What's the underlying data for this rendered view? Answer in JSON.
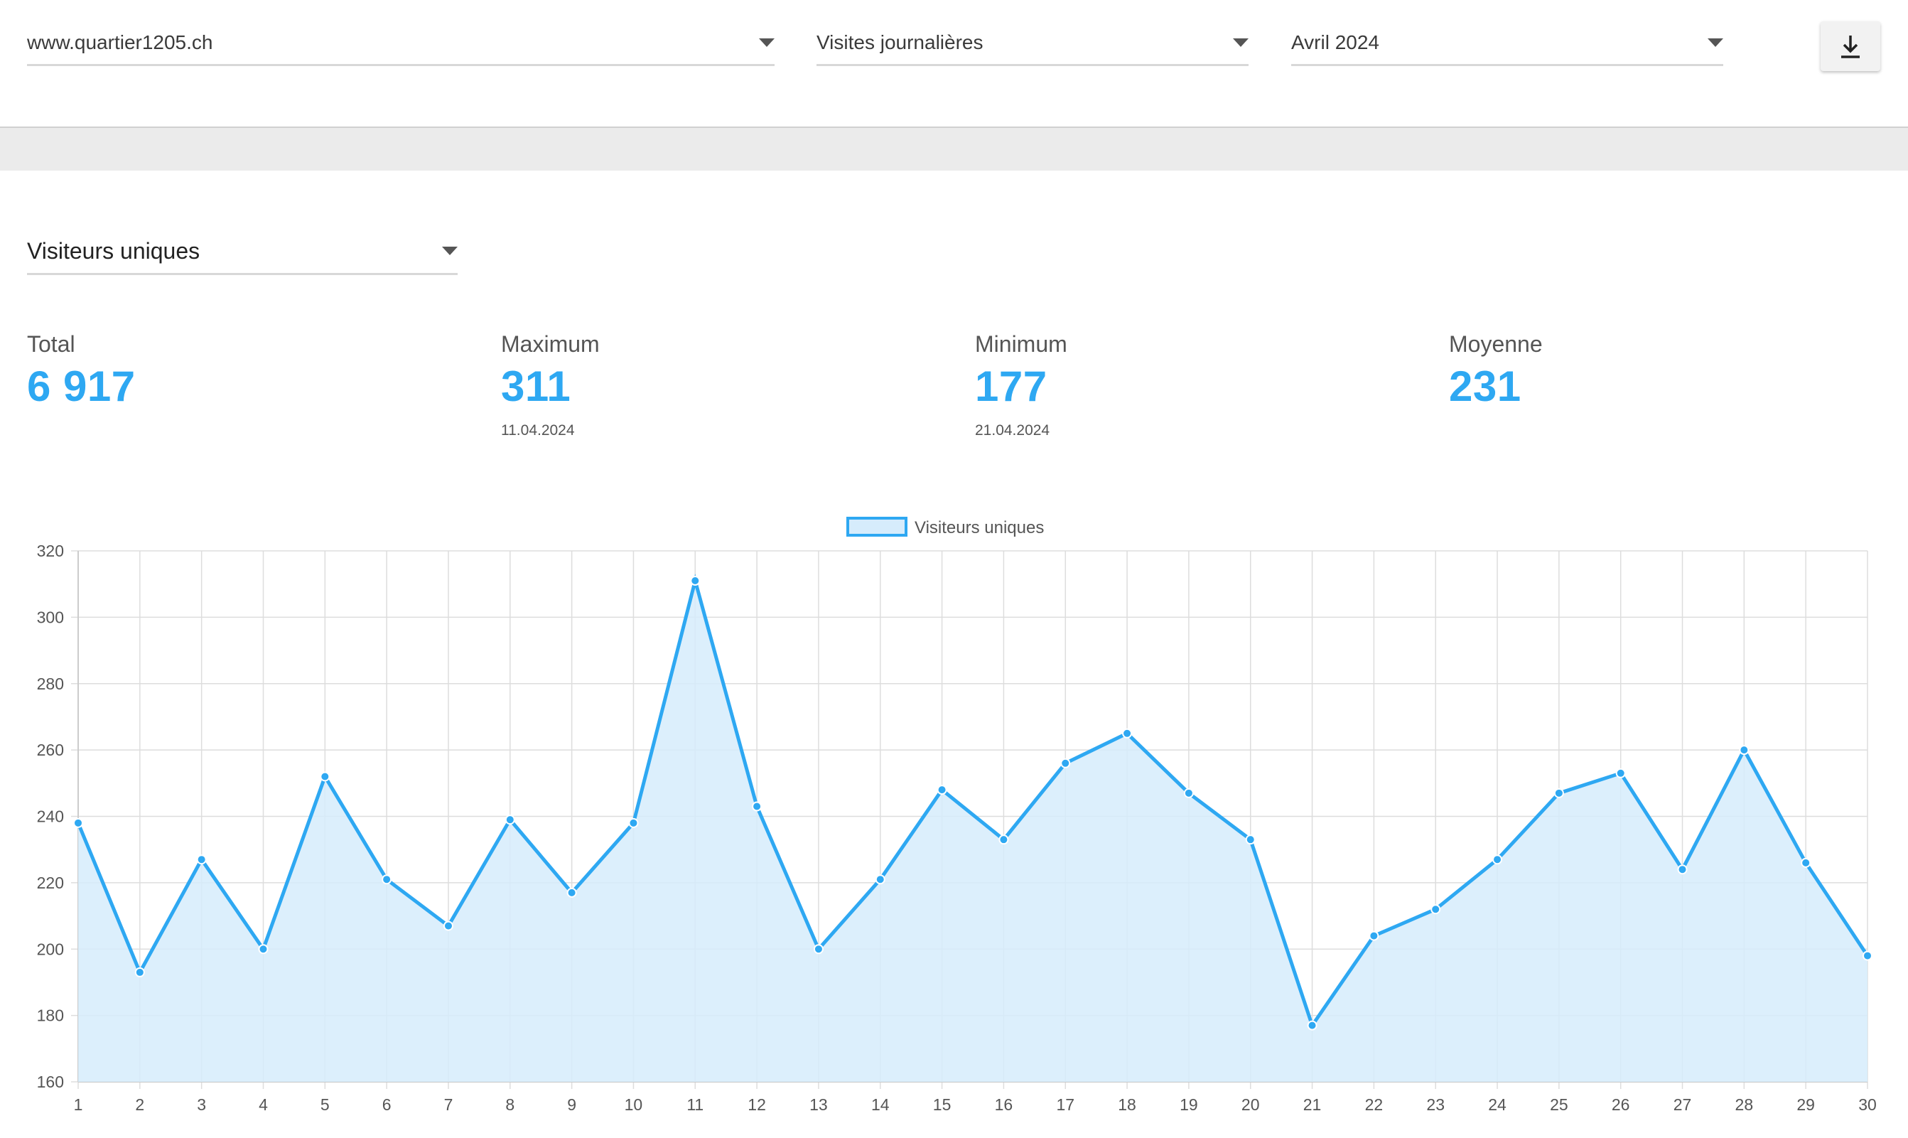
{
  "filters": {
    "site": "www.quartier1205.ch",
    "report_type": "Visites journalières",
    "period": "Avril 2024"
  },
  "toolbar": {
    "download_icon": "download-icon"
  },
  "metric_select": {
    "value": "Visiteurs uniques"
  },
  "stats": {
    "total": {
      "label": "Total",
      "value": "6 917"
    },
    "maximum": {
      "label": "Maximum",
      "value": "311",
      "date": "11.04.2024"
    },
    "minimum": {
      "label": "Minimum",
      "value": "177",
      "date": "21.04.2024"
    },
    "average": {
      "label": "Moyenne",
      "value": "231"
    }
  },
  "colors": {
    "accent": "#2ea8f2",
    "fill": "#d6ecfc",
    "grid": "#dddddd"
  },
  "chart_data": {
    "type": "area",
    "x": [
      1,
      2,
      3,
      4,
      5,
      6,
      7,
      8,
      9,
      10,
      11,
      12,
      13,
      14,
      15,
      16,
      17,
      18,
      19,
      20,
      21,
      22,
      23,
      24,
      25,
      26,
      27,
      28,
      29,
      30
    ],
    "series": [
      {
        "name": "Visiteurs uniques",
        "values": [
          238,
          193,
          227,
          200,
          252,
          221,
          207,
          239,
          217,
          238,
          311,
          243,
          200,
          221,
          248,
          233,
          256,
          265,
          247,
          233,
          177,
          204,
          212,
          227,
          247,
          253,
          224,
          260,
          226,
          198
        ]
      }
    ],
    "ylim": [
      160,
      320
    ],
    "yticks": [
      160,
      180,
      200,
      220,
      240,
      260,
      280,
      300,
      320
    ],
    "grid": true,
    "legend_position": "top-center"
  }
}
